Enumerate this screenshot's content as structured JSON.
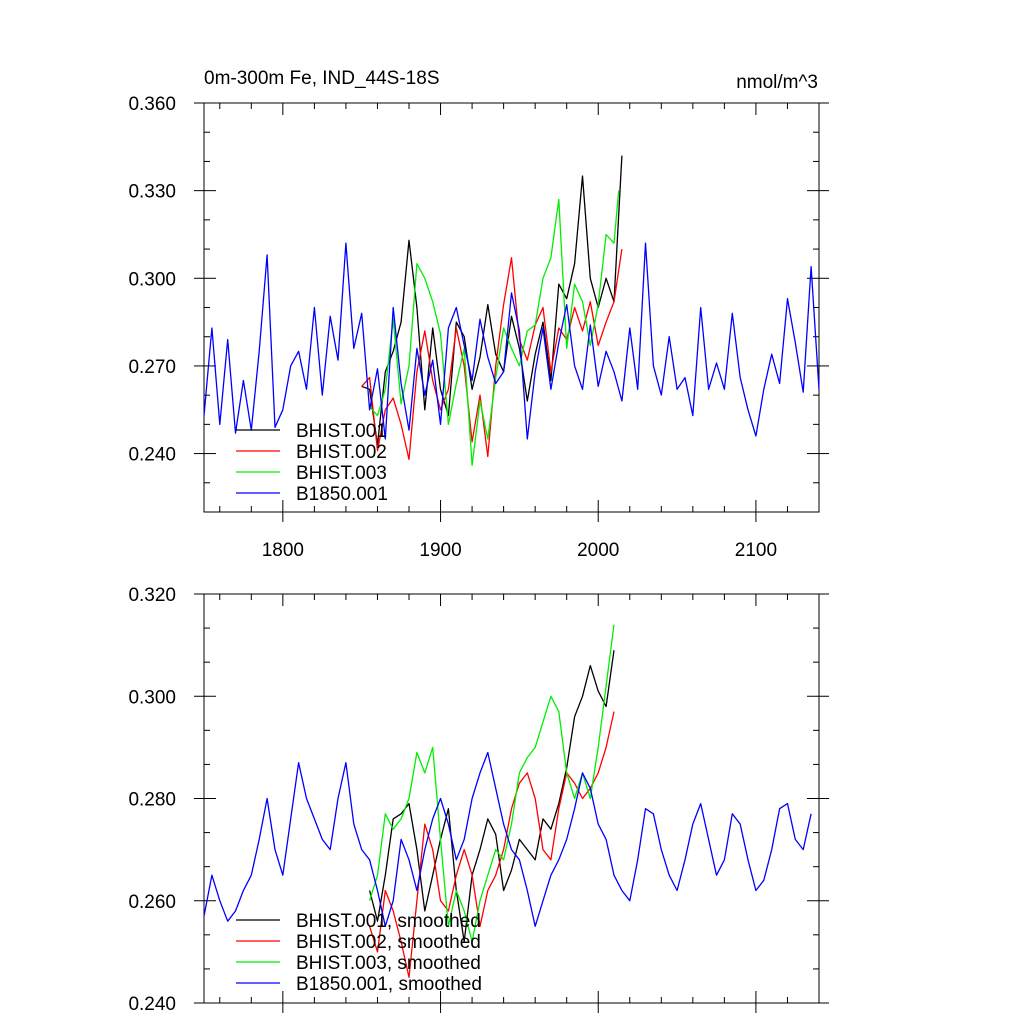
{
  "chart_data": [
    {
      "type": "line",
      "title": "0m-300m Fe, IND_44S-18S",
      "units": "nmol/m^3",
      "xlim": [
        1750,
        2140
      ],
      "ylim": [
        0.22,
        0.36
      ],
      "xticks": [
        1800,
        1900,
        2000,
        2100
      ],
      "xtick_labels": [
        "1800",
        "1900",
        "2000",
        "2100"
      ],
      "yticks": [
        0.24,
        0.27,
        0.3,
        0.33,
        0.36
      ],
      "ytick_labels": [
        "0.240",
        "0.270",
        "0.300",
        "0.330",
        "0.360"
      ],
      "legend_position": "bottom-left",
      "series": [
        {
          "name": "BHIST.001",
          "color": "#000000",
          "x": [
            1850,
            1855,
            1860,
            1865,
            1870,
            1875,
            1880,
            1885,
            1890,
            1895,
            1900,
            1905,
            1910,
            1915,
            1920,
            1925,
            1930,
            1935,
            1940,
            1945,
            1950,
            1955,
            1960,
            1965,
            1970,
            1975,
            1980,
            1985,
            1990,
            1995,
            2000,
            2005,
            2010,
            2015
          ],
          "y": [
            0.263,
            0.262,
            0.243,
            0.268,
            0.275,
            0.285,
            0.313,
            0.29,
            0.255,
            0.283,
            0.262,
            0.253,
            0.285,
            0.28,
            0.262,
            0.273,
            0.291,
            0.274,
            0.268,
            0.287,
            0.276,
            0.258,
            0.274,
            0.285,
            0.265,
            0.298,
            0.293,
            0.305,
            0.335,
            0.3,
            0.29,
            0.3,
            0.292,
            0.342
          ]
        },
        {
          "name": "BHIST.002",
          "color": "#ff0000",
          "x": [
            1850,
            1855,
            1860,
            1865,
            1870,
            1875,
            1880,
            1885,
            1890,
            1895,
            1900,
            1905,
            1910,
            1915,
            1920,
            1925,
            1930,
            1935,
            1940,
            1945,
            1950,
            1955,
            1960,
            1965,
            1970,
            1975,
            1980,
            1985,
            1990,
            1995,
            2000,
            2005,
            2010,
            2015
          ],
          "y": [
            0.263,
            0.266,
            0.241,
            0.255,
            0.259,
            0.25,
            0.238,
            0.268,
            0.282,
            0.265,
            0.255,
            0.262,
            0.283,
            0.27,
            0.244,
            0.26,
            0.239,
            0.27,
            0.291,
            0.307,
            0.279,
            0.272,
            0.284,
            0.29,
            0.268,
            0.283,
            0.279,
            0.29,
            0.282,
            0.292,
            0.277,
            0.285,
            0.292,
            0.31
          ]
        },
        {
          "name": "BHIST.003",
          "color": "#00ee00",
          "x": [
            1855,
            1860,
            1865,
            1870,
            1875,
            1880,
            1885,
            1890,
            1895,
            1900,
            1905,
            1910,
            1915,
            1920,
            1925,
            1930,
            1935,
            1940,
            1945,
            1950,
            1955,
            1960,
            1965,
            1970,
            1975,
            1980,
            1985,
            1990,
            1995,
            2000,
            2005,
            2010,
            2013
          ],
          "y": [
            0.256,
            0.253,
            0.262,
            0.286,
            0.257,
            0.27,
            0.305,
            0.3,
            0.292,
            0.281,
            0.25,
            0.264,
            0.276,
            0.236,
            0.258,
            0.245,
            0.266,
            0.283,
            0.276,
            0.27,
            0.282,
            0.284,
            0.3,
            0.307,
            0.327,
            0.276,
            0.298,
            0.292,
            0.277,
            0.291,
            0.315,
            0.312,
            0.33
          ]
        },
        {
          "name": "B1850.001",
          "color": "#0000ff",
          "x": [
            1750,
            1755,
            1760,
            1765,
            1770,
            1775,
            1780,
            1785,
            1790,
            1795,
            1800,
            1805,
            1810,
            1815,
            1820,
            1825,
            1830,
            1835,
            1840,
            1845,
            1850,
            1855,
            1860,
            1865,
            1870,
            1875,
            1880,
            1885,
            1890,
            1895,
            1900,
            1905,
            1910,
            1915,
            1920,
            1925,
            1930,
            1935,
            1940,
            1945,
            1950,
            1955,
            1960,
            1965,
            1970,
            1975,
            1980,
            1985,
            1990,
            1995,
            2000,
            2005,
            2010,
            2015,
            2020,
            2025,
            2030,
            2035,
            2040,
            2045,
            2050,
            2055,
            2060,
            2065,
            2070,
            2075,
            2080,
            2085,
            2090,
            2095,
            2100,
            2105,
            2110,
            2115,
            2120,
            2125,
            2130,
            2135,
            2140
          ],
          "y": [
            0.253,
            0.283,
            0.25,
            0.279,
            0.247,
            0.265,
            0.248,
            0.275,
            0.308,
            0.249,
            0.255,
            0.27,
            0.275,
            0.262,
            0.29,
            0.26,
            0.287,
            0.272,
            0.312,
            0.276,
            0.288,
            0.255,
            0.269,
            0.245,
            0.29,
            0.264,
            0.248,
            0.276,
            0.26,
            0.272,
            0.25,
            0.283,
            0.29,
            0.277,
            0.265,
            0.286,
            0.273,
            0.264,
            0.268,
            0.295,
            0.282,
            0.245,
            0.268,
            0.283,
            0.262,
            0.278,
            0.291,
            0.27,
            0.262,
            0.284,
            0.263,
            0.275,
            0.268,
            0.258,
            0.283,
            0.262,
            0.312,
            0.27,
            0.26,
            0.28,
            0.262,
            0.266,
            0.253,
            0.29,
            0.262,
            0.271,
            0.262,
            0.288,
            0.266,
            0.255,
            0.246,
            0.262,
            0.274,
            0.264,
            0.293,
            0.278,
            0.261,
            0.304,
            0.262
          ]
        }
      ],
      "legend": [
        "BHIST.001",
        "BHIST.002",
        "BHIST.003",
        "B1850.001"
      ]
    },
    {
      "type": "line",
      "title": "",
      "xlim": [
        1750,
        2140
      ],
      "ylim": [
        0.24,
        0.32
      ],
      "xticks": [
        1800,
        1900,
        2000,
        2100
      ],
      "yticks": [
        0.24,
        0.26,
        0.28,
        0.3,
        0.32
      ],
      "ytick_labels": [
        "0.240",
        "0.260",
        "0.280",
        "0.300",
        "0.320"
      ],
      "legend_position": "bottom-left",
      "series": [
        {
          "name": "BHIST.001, smoothed",
          "color": "#000000",
          "x": [
            1855,
            1860,
            1865,
            1870,
            1875,
            1880,
            1885,
            1890,
            1895,
            1900,
            1905,
            1910,
            1915,
            1920,
            1925,
            1930,
            1935,
            1940,
            1945,
            1950,
            1955,
            1960,
            1965,
            1970,
            1975,
            1980,
            1985,
            1990,
            1995,
            2000,
            2005,
            2010
          ],
          "y": [
            0.262,
            0.256,
            0.265,
            0.276,
            0.277,
            0.279,
            0.27,
            0.258,
            0.265,
            0.272,
            0.278,
            0.262,
            0.252,
            0.265,
            0.27,
            0.276,
            0.273,
            0.262,
            0.266,
            0.272,
            0.27,
            0.268,
            0.276,
            0.274,
            0.279,
            0.286,
            0.296,
            0.3,
            0.306,
            0.301,
            0.298,
            0.309
          ]
        },
        {
          "name": "BHIST.002, smoothed",
          "color": "#ff0000",
          "x": [
            1855,
            1860,
            1865,
            1870,
            1875,
            1880,
            1885,
            1890,
            1895,
            1900,
            1905,
            1910,
            1915,
            1920,
            1925,
            1930,
            1935,
            1940,
            1945,
            1950,
            1955,
            1960,
            1965,
            1970,
            1975,
            1980,
            1985,
            1990,
            1995,
            2000,
            2005,
            2010
          ],
          "y": [
            0.255,
            0.25,
            0.262,
            0.258,
            0.252,
            0.245,
            0.26,
            0.275,
            0.27,
            0.26,
            0.258,
            0.265,
            0.27,
            0.265,
            0.255,
            0.262,
            0.265,
            0.27,
            0.278,
            0.283,
            0.285,
            0.28,
            0.27,
            0.268,
            0.278,
            0.285,
            0.283,
            0.28,
            0.282,
            0.285,
            0.29,
            0.297
          ]
        },
        {
          "name": "BHIST.003, smoothed",
          "color": "#00ee00",
          "x": [
            1855,
            1860,
            1865,
            1870,
            1875,
            1880,
            1885,
            1890,
            1895,
            1900,
            1905,
            1910,
            1915,
            1920,
            1925,
            1930,
            1935,
            1940,
            1945,
            1950,
            1955,
            1960,
            1965,
            1970,
            1975,
            1980,
            1985,
            1990,
            1995,
            2000,
            2005,
            2010
          ],
          "y": [
            0.26,
            0.265,
            0.277,
            0.274,
            0.276,
            0.28,
            0.289,
            0.285,
            0.29,
            0.272,
            0.255,
            0.262,
            0.258,
            0.252,
            0.26,
            0.265,
            0.27,
            0.268,
            0.275,
            0.285,
            0.288,
            0.29,
            0.295,
            0.3,
            0.297,
            0.285,
            0.28,
            0.285,
            0.28,
            0.29,
            0.302,
            0.314
          ]
        },
        {
          "name": "B1850.001, smoothed",
          "color": "#0000ff",
          "x": [
            1750,
            1755,
            1760,
            1765,
            1770,
            1775,
            1780,
            1785,
            1790,
            1795,
            1800,
            1805,
            1810,
            1815,
            1820,
            1825,
            1830,
            1835,
            1840,
            1845,
            1850,
            1855,
            1860,
            1865,
            1870,
            1875,
            1880,
            1885,
            1890,
            1895,
            1900,
            1905,
            1910,
            1915,
            1920,
            1925,
            1930,
            1935,
            1940,
            1945,
            1950,
            1955,
            1960,
            1965,
            1970,
            1975,
            1980,
            1985,
            1990,
            1995,
            2000,
            2005,
            2010,
            2015,
            2020,
            2025,
            2030,
            2035,
            2040,
            2045,
            2050,
            2055,
            2060,
            2065,
            2070,
            2075,
            2080,
            2085,
            2090,
            2095,
            2100,
            2105,
            2110,
            2115,
            2120,
            2125,
            2130,
            2135
          ],
          "y": [
            0.257,
            0.265,
            0.26,
            0.256,
            0.258,
            0.262,
            0.265,
            0.272,
            0.28,
            0.27,
            0.265,
            0.276,
            0.287,
            0.28,
            0.276,
            0.272,
            0.27,
            0.28,
            0.287,
            0.275,
            0.27,
            0.268,
            0.262,
            0.255,
            0.26,
            0.272,
            0.268,
            0.262,
            0.27,
            0.276,
            0.28,
            0.275,
            0.268,
            0.272,
            0.28,
            0.285,
            0.289,
            0.282,
            0.275,
            0.27,
            0.268,
            0.262,
            0.255,
            0.26,
            0.265,
            0.268,
            0.272,
            0.278,
            0.285,
            0.282,
            0.275,
            0.272,
            0.265,
            0.262,
            0.26,
            0.268,
            0.278,
            0.277,
            0.27,
            0.265,
            0.262,
            0.268,
            0.275,
            0.279,
            0.272,
            0.265,
            0.268,
            0.277,
            0.275,
            0.268,
            0.262,
            0.264,
            0.27,
            0.278,
            0.279,
            0.272,
            0.27,
            0.277
          ]
        }
      ],
      "legend": [
        "BHIST.001, smoothed",
        "BHIST.002, smoothed",
        "BHIST.003, smoothed",
        "B1850.001, smoothed"
      ]
    }
  ]
}
